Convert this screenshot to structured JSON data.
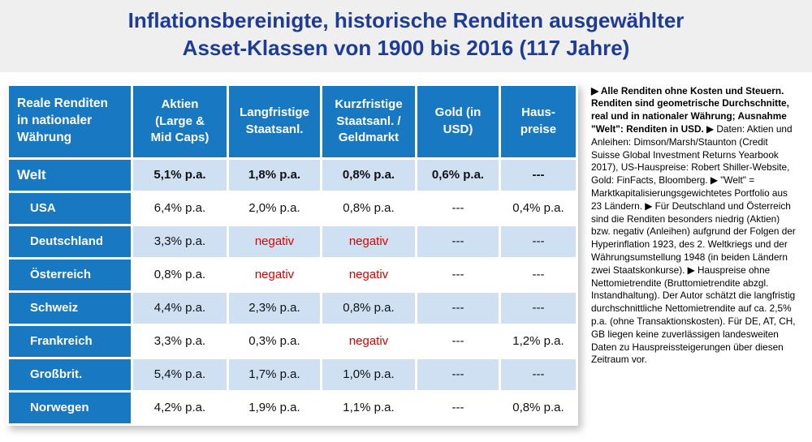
{
  "title": {
    "line1": "Inflationsbereinigte, historische Renditen ausgewählter",
    "line2": "Asset-Klassen von 1900 bis 2016 (117 Jahre)"
  },
  "colors": {
    "title_blue": "#1E3C96",
    "header_blue": "#1878C2",
    "row_shaded_blue": "#CFE0F2",
    "negative_red": "#E00000"
  },
  "bullet_char": "▶",
  "chart_data": {
    "type": "table",
    "title": "Inflationsbereinigte, historische Renditen ausgewählter Asset-Klassen von 1900 bis 2016 (117 Jahre)",
    "columns": [
      "Reale Renditen\nin nationaler\nWährung",
      "Aktien\n(Large &\nMid Caps)",
      "Langfristige\nStaatsanl.",
      "Kurzfristige\nStaatsanl. /\nGeldmarkt",
      "Gold (in\nUSD)",
      "Haus-\npreise"
    ],
    "negative_marker": "negativ",
    "rows": [
      {
        "label": "Welt",
        "emphasis": true,
        "values": [
          "5,1% p.a.",
          "1,8% p.a.",
          "0,8% p.a.",
          "0,6% p.a.",
          "---"
        ]
      },
      {
        "label": "USA",
        "values": [
          "6,4% p.a.",
          "2,0% p.a.",
          "0,8% p.a.",
          "---",
          "0,4% p.a."
        ]
      },
      {
        "label": "Deutschland",
        "values": [
          "3,3% p.a.",
          "negativ",
          "negativ",
          "---",
          "---"
        ]
      },
      {
        "label": "Österreich",
        "values": [
          "0,8% p.a.",
          "negativ",
          "negativ",
          "---",
          "---"
        ]
      },
      {
        "label": "Schweiz",
        "values": [
          "4,4% p.a.",
          "2,3% p.a.",
          "0,8% p.a.",
          "---",
          "---"
        ]
      },
      {
        "label": "Frankreich",
        "values": [
          "3,3% p.a.",
          "0,3% p.a.",
          "negativ",
          "---",
          "1,2% p.a."
        ]
      },
      {
        "label": "Großbrit.",
        "values": [
          "5,4% p.a.",
          "1,7% p.a.",
          "1,0% p.a.",
          "---",
          "---"
        ]
      },
      {
        "label": "Norwegen",
        "values": [
          "4,2% p.a.",
          "1,9% p.a.",
          "1,1% p.a.",
          "---",
          "0,8% p.a."
        ]
      }
    ]
  },
  "notes": [
    {
      "bold": true,
      "text": "Alle Renditen ohne Kosten und Steuern. Renditen sind geometrische Durchschnitte, real und in nationaler Währung; Ausnahme \"Welt\": Renditen in USD."
    },
    {
      "bold": false,
      "text": "Daten: Aktien und Anleihen: Dimson/Marsh/Staunton (Credit Suisse Global Investment Returns Yearbook 2017), US-Hauspreise: Robert Shiller-Website, Gold: FinFacts, Bloomberg."
    },
    {
      "bold": false,
      "text": "\"Welt\" = Marktkapitalisierungsgewichtetes Portfolio aus 23 Ländern."
    },
    {
      "bold": false,
      "text": "Für Deutschland und Österreich sind die Renditen besonders niedrig (Aktien) bzw. negativ (Anleihen) aufgrund der Folgen der Hyperinflation 1923, des 2. Weltkriegs und der Währungsumstellung 1948 (in beiden Ländern zwei Staatskonkurse)."
    },
    {
      "bold": false,
      "text": "Hauspreise ohne Nettomietrendite (Bruttomietrendite abzgl. Instandhaltung). Der Autor schätzt die langfristig durchschnittliche Nettomietrendite auf ca. 2,5% p.a. (ohne Transaktionskosten). Für DE, AT, CH, GB liegen keine zuverlässigen landesweiten Daten zu Hauspreissteigerungen über diesen Zeitraum vor."
    }
  ]
}
